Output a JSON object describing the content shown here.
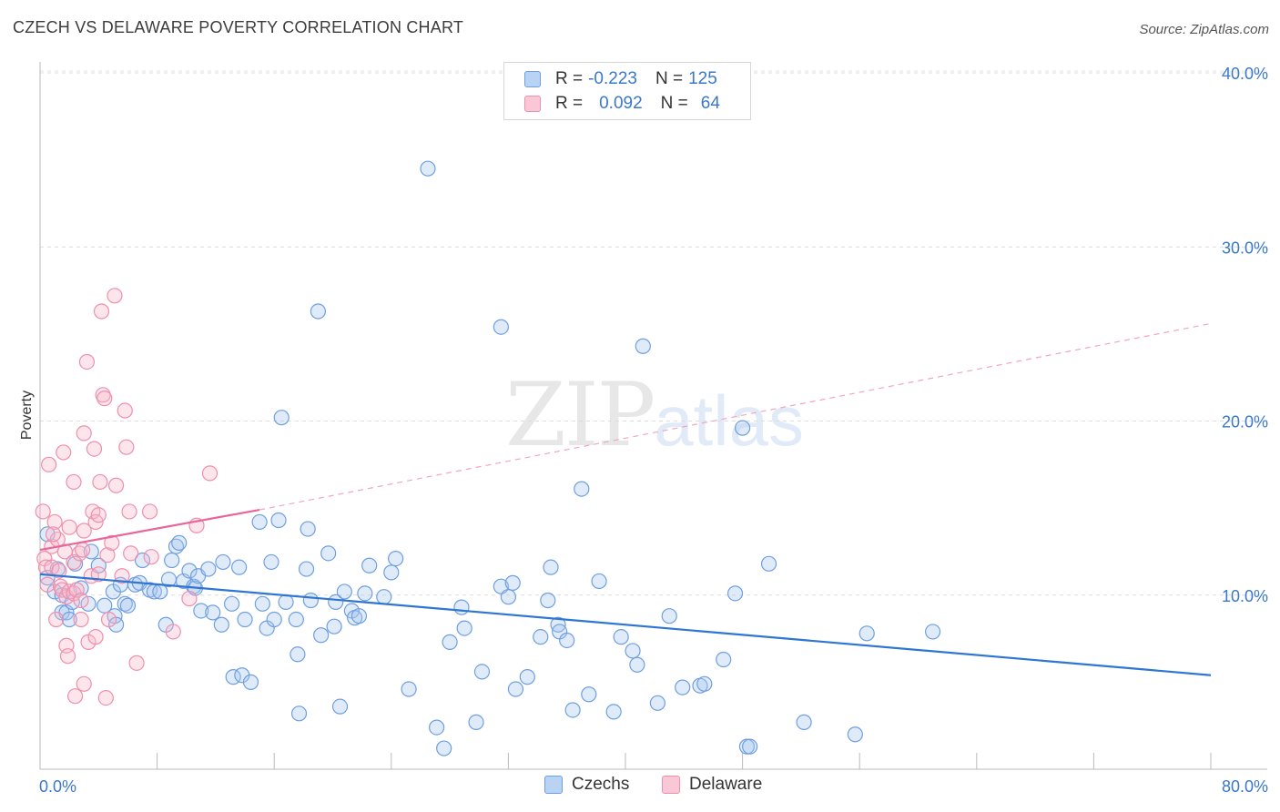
{
  "title": "CZECH VS DELAWARE POVERTY CORRELATION CHART",
  "source": "Source: ZipAtlas.com",
  "watermark": {
    "zip": "ZIP",
    "atlas": "atlas"
  },
  "legend": {
    "rows": [
      {
        "r_label": "R =",
        "r_value": "-0.223",
        "n_label": "N =",
        "n_value": "125",
        "color": "#a7c6ef"
      },
      {
        "r_label": "R =",
        "r_value": "0.092",
        "n_label": "N =",
        "n_value": "64",
        "color": "#f7b6c8"
      }
    ]
  },
  "bottom_legend": [
    {
      "label": "Czechs",
      "color": "#a7c6ef"
    },
    {
      "label": "Delaware",
      "color": "#f7b6c8"
    }
  ],
  "chart_data": {
    "type": "scatter",
    "title": "CZECH VS DELAWARE POVERTY CORRELATION CHART",
    "ylabel": "Poverty",
    "xlabel": "",
    "xlim": [
      0,
      80
    ],
    "ylim": [
      0,
      40
    ],
    "x_tick_labels": [
      "0.0%",
      "80.0%"
    ],
    "y_ticks": [
      10,
      20,
      30,
      40
    ],
    "y_tick_labels": [
      "10.0%",
      "20.0%",
      "30.0%",
      "40.0%"
    ],
    "grid": "horizontal dashed",
    "legend_placement": "top-center",
    "series": [
      {
        "name": "Czechs",
        "color": "#6f9fe0",
        "trend": {
          "x": [
            0,
            80
          ],
          "y": [
            11.2,
            5.4
          ],
          "style": "solid"
        },
        "points": [
          [
            0.5,
            13.5
          ],
          [
            0.5,
            11
          ],
          [
            1,
            10.2
          ],
          [
            1.2,
            11.5
          ],
          [
            1.5,
            10
          ],
          [
            1.5,
            9
          ],
          [
            1.8,
            9
          ],
          [
            2,
            8.6
          ],
          [
            2.2,
            9.6
          ],
          [
            2.4,
            11.8
          ],
          [
            2.8,
            10.4
          ],
          [
            3.3,
            9.5
          ],
          [
            3.5,
            12.5
          ],
          [
            4,
            11.7
          ],
          [
            4.4,
            9.4
          ],
          [
            5,
            10.2
          ],
          [
            5.1,
            8.8
          ],
          [
            5.2,
            8.3
          ],
          [
            5.5,
            10.6
          ],
          [
            5.8,
            9.5
          ],
          [
            6,
            9.4
          ],
          [
            6.5,
            10.6
          ],
          [
            6.8,
            10.7
          ],
          [
            7,
            12
          ],
          [
            7.5,
            10.3
          ],
          [
            7.8,
            10.2
          ],
          [
            8.2,
            10.2
          ],
          [
            8.6,
            8.3
          ],
          [
            8.8,
            10.9
          ],
          [
            9,
            12
          ],
          [
            9.3,
            12.8
          ],
          [
            9.5,
            13
          ],
          [
            9.8,
            10.8
          ],
          [
            10.2,
            11.4
          ],
          [
            10.5,
            10.5
          ],
          [
            10.6,
            10.4
          ],
          [
            10.8,
            11.1
          ],
          [
            11,
            9.1
          ],
          [
            11.5,
            11.5
          ],
          [
            11.8,
            9
          ],
          [
            12.4,
            8.3
          ],
          [
            12.5,
            11.9
          ],
          [
            13.1,
            9.5
          ],
          [
            13.2,
            5.3
          ],
          [
            13.6,
            11.6
          ],
          [
            13.8,
            5.4
          ],
          [
            14,
            8.6
          ],
          [
            14.4,
            5
          ],
          [
            15,
            14.2
          ],
          [
            15.2,
            9.5
          ],
          [
            15.5,
            8.1
          ],
          [
            15.8,
            11.9
          ],
          [
            16,
            8.6
          ],
          [
            16.3,
            14.3
          ],
          [
            16.5,
            20.2
          ],
          [
            16.8,
            9.6
          ],
          [
            17.5,
            8.6
          ],
          [
            17.6,
            6.6
          ],
          [
            17.7,
            3.2
          ],
          [
            18.2,
            11.5
          ],
          [
            18.3,
            13.8
          ],
          [
            18.5,
            9.7
          ],
          [
            19,
            26.3
          ],
          [
            19.2,
            7.7
          ],
          [
            19.7,
            12.4
          ],
          [
            20.1,
            8.2
          ],
          [
            20.2,
            9.6
          ],
          [
            20.5,
            3.6
          ],
          [
            20.8,
            10.2
          ],
          [
            21.3,
            9.1
          ],
          [
            21.5,
            8.7
          ],
          [
            21.8,
            8.8
          ],
          [
            22.2,
            10.1
          ],
          [
            22.5,
            11.7
          ],
          [
            23.5,
            9.9
          ],
          [
            24,
            11.3
          ],
          [
            24.3,
            12.1
          ],
          [
            25.2,
            4.6
          ],
          [
            26.5,
            34.5
          ],
          [
            27.1,
            2.4
          ],
          [
            27.6,
            1.2
          ],
          [
            28,
            7.3
          ],
          [
            28.8,
            9.3
          ],
          [
            29,
            8.1
          ],
          [
            29.8,
            2.7
          ],
          [
            30.2,
            5.6
          ],
          [
            31.5,
            25.4
          ],
          [
            31.5,
            10.5
          ],
          [
            32,
            9.9
          ],
          [
            32.3,
            10.7
          ],
          [
            32.5,
            4.6
          ],
          [
            33.3,
            5.3
          ],
          [
            34.2,
            7.6
          ],
          [
            34.7,
            9.7
          ],
          [
            34.9,
            11.6
          ],
          [
            35.4,
            8.3
          ],
          [
            35.5,
            7.9
          ],
          [
            36,
            7.4
          ],
          [
            36.4,
            3.4
          ],
          [
            37,
            16.1
          ],
          [
            37.5,
            4.3
          ],
          [
            38.2,
            10.8
          ],
          [
            39.2,
            3.3
          ],
          [
            39.7,
            7.6
          ],
          [
            40.5,
            6.8
          ],
          [
            40.8,
            6
          ],
          [
            41.2,
            24.3
          ],
          [
            42.2,
            3.8
          ],
          [
            43,
            8.8
          ],
          [
            43.9,
            4.7
          ],
          [
            45.1,
            4.8
          ],
          [
            45.4,
            4.9
          ],
          [
            46.7,
            6.3
          ],
          [
            47.5,
            10.1
          ],
          [
            48,
            19.6
          ],
          [
            48.3,
            1.3
          ],
          [
            48.5,
            1.3
          ],
          [
            49.8,
            11.8
          ],
          [
            52.2,
            2.7
          ],
          [
            55.7,
            2
          ],
          [
            56.5,
            7.8
          ],
          [
            61,
            7.9
          ]
        ]
      },
      {
        "name": "Delaware",
        "color": "#ef8fae",
        "trend": {
          "x": [
            0,
            15
          ],
          "y": [
            12.6,
            14.9
          ],
          "style": "solid",
          "extension": {
            "x": [
              15,
              80
            ],
            "y": [
              14.9,
              25.6
            ],
            "style": "dashed"
          }
        },
        "points": [
          [
            0.2,
            14.8
          ],
          [
            0.3,
            12.1
          ],
          [
            0.4,
            11.6
          ],
          [
            0.5,
            10.6
          ],
          [
            0.6,
            17.5
          ],
          [
            0.8,
            12.8
          ],
          [
            0.8,
            11.6
          ],
          [
            1,
            14.2
          ],
          [
            1.1,
            8.6
          ],
          [
            1.2,
            13.2
          ],
          [
            1.4,
            10.5
          ],
          [
            1.5,
            10.3
          ],
          [
            1.6,
            18.2
          ],
          [
            1.7,
            12.5
          ],
          [
            1.8,
            9.9
          ],
          [
            1.8,
            7.1
          ],
          [
            1.9,
            6.5
          ],
          [
            2,
            13.9
          ],
          [
            2,
            10.2
          ],
          [
            2.3,
            16.5
          ],
          [
            2.3,
            11.9
          ],
          [
            2.3,
            10.1
          ],
          [
            2.4,
            4.2
          ],
          [
            2.5,
            10.3
          ],
          [
            2.7,
            12.4
          ],
          [
            2.8,
            9.7
          ],
          [
            2.8,
            8.6
          ],
          [
            3,
            13.7
          ],
          [
            3,
            19.3
          ],
          [
            3,
            4.9
          ],
          [
            3.2,
            23.4
          ],
          [
            3.3,
            7.3
          ],
          [
            3.5,
            11.1
          ],
          [
            3.6,
            14.8
          ],
          [
            3.7,
            18.4
          ],
          [
            3.8,
            14.2
          ],
          [
            3.8,
            7.6
          ],
          [
            4,
            14.6
          ],
          [
            4,
            11.2
          ],
          [
            4.1,
            16.5
          ],
          [
            4.2,
            26.3
          ],
          [
            4.3,
            21.5
          ],
          [
            4.4,
            21.3
          ],
          [
            4.5,
            4.1
          ],
          [
            4.6,
            12.3
          ],
          [
            4.7,
            8.6
          ],
          [
            4.9,
            13
          ],
          [
            5.1,
            27.2
          ],
          [
            5.2,
            16.3
          ],
          [
            5.6,
            11.1
          ],
          [
            5.8,
            20.6
          ],
          [
            5.9,
            18.5
          ],
          [
            6.1,
            14.8
          ],
          [
            6.2,
            12.4
          ],
          [
            6.6,
            6.1
          ],
          [
            7.5,
            14.8
          ],
          [
            7.6,
            12.2
          ],
          [
            9.1,
            7.9
          ],
          [
            10.2,
            9.8
          ],
          [
            10.7,
            14
          ],
          [
            11.6,
            17
          ],
          [
            1.3,
            11.4
          ],
          [
            2.9,
            12.6
          ],
          [
            0.9,
            13.5
          ]
        ]
      }
    ]
  }
}
